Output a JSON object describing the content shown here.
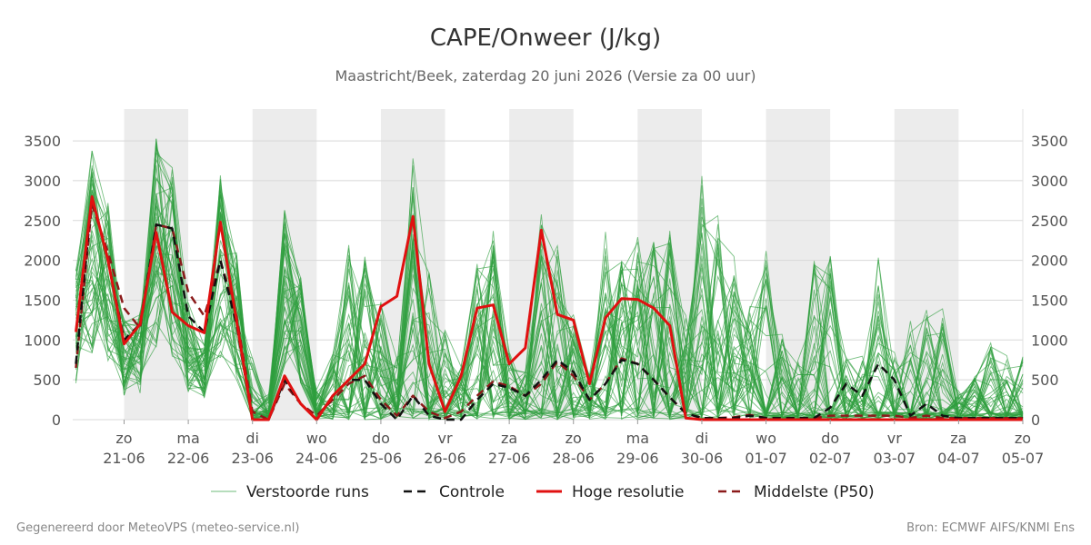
{
  "chart_data": {
    "type": "line",
    "title": "CAPE/Onweer (J/kg)",
    "subtitle": "Maastricht/Beek, zaterdag 20 juni 2026 (Versie za 00 uur)",
    "ylim": [
      0,
      3900
    ],
    "yticks": [
      0,
      500,
      1000,
      1500,
      2000,
      2500,
      3000,
      3500
    ],
    "xlim": [
      -0.8,
      14
    ],
    "x_ticks": [
      {
        "day": "zo",
        "date": "21-06"
      },
      {
        "day": "ma",
        "date": "22-06"
      },
      {
        "day": "di",
        "date": "23-06"
      },
      {
        "day": "wo",
        "date": "24-06"
      },
      {
        "day": "do",
        "date": "25-06"
      },
      {
        "day": "vr",
        "date": "26-06"
      },
      {
        "day": "za",
        "date": "27-06"
      },
      {
        "day": "zo",
        "date": "28-06"
      },
      {
        "day": "ma",
        "date": "29-06"
      },
      {
        "day": "di",
        "date": "30-06"
      },
      {
        "day": "wo",
        "date": "01-07"
      },
      {
        "day": "do",
        "date": "02-07"
      },
      {
        "day": "vr",
        "date": "03-07"
      },
      {
        "day": "za",
        "date": "04-07"
      },
      {
        "day": "zo",
        "date": "05-07"
      }
    ],
    "weekend_bands": [
      [
        0,
        1
      ],
      [
        2,
        3
      ],
      [
        4,
        5
      ],
      [
        6,
        7
      ],
      [
        8,
        9
      ],
      [
        10,
        11
      ],
      [
        12,
        13
      ]
    ],
    "series": [
      {
        "name": "Controle",
        "color": "#111111",
        "style": "dashed",
        "x": [
          -0.75,
          -0.5,
          -0.25,
          0,
          0.25,
          0.5,
          0.75,
          1,
          1.25,
          1.5,
          1.75,
          2,
          2.25,
          2.5,
          2.75,
          3,
          3.25,
          3.5,
          3.75,
          4,
          4.25,
          4.5,
          4.75,
          5,
          5.25,
          5.5,
          5.75,
          6,
          6.25,
          6.5,
          6.75,
          7,
          7.25,
          7.5,
          7.75,
          8,
          8.25,
          8.5,
          8.75,
          9,
          9.25,
          9.5,
          9.75,
          10,
          10.25,
          10.5,
          10.75,
          11,
          11.25,
          11.5,
          11.75,
          12,
          12.25,
          12.5,
          12.75,
          13,
          13.25,
          13.5,
          13.75,
          14
        ],
        "values": [
          700,
          2800,
          2000,
          1000,
          1200,
          2450,
          2400,
          1300,
          1100,
          2000,
          1200,
          0,
          0,
          500,
          200,
          0,
          300,
          500,
          500,
          200,
          0,
          300,
          50,
          0,
          0,
          250,
          450,
          400,
          300,
          500,
          750,
          600,
          250,
          450,
          750,
          700,
          500,
          280,
          80,
          20,
          20,
          20,
          50,
          20,
          20,
          20,
          20,
          150,
          450,
          300,
          700,
          500,
          50,
          200,
          50,
          20,
          20,
          20,
          20,
          20
        ]
      },
      {
        "name": "Hoge resolutie",
        "color": "#e01010",
        "style": "solid",
        "x": [
          -0.75,
          -0.5,
          -0.25,
          0,
          0.25,
          0.5,
          0.75,
          1,
          1.25,
          1.5,
          1.75,
          2,
          2.25,
          2.5,
          2.75,
          3,
          3.25,
          3.5,
          3.75,
          4,
          4.25,
          4.5,
          4.75,
          5,
          5.25,
          5.5,
          5.75,
          6,
          6.25,
          6.5,
          6.75,
          7,
          7.25,
          7.5,
          7.75,
          8,
          8.25,
          8.5,
          8.75,
          9,
          9.25,
          9.5,
          9.75,
          10,
          10.25,
          10.5,
          10.75,
          11,
          11.25,
          11.5,
          11.75,
          12,
          12.25,
          12.5,
          12.75,
          13,
          13.25,
          13.5,
          13.75,
          14
        ],
        "values": [
          1100,
          2800,
          2000,
          950,
          1200,
          2350,
          1350,
          1180,
          1090,
          2480,
          1250,
          0,
          0,
          550,
          200,
          0,
          300,
          500,
          700,
          1420,
          1550,
          2550,
          700,
          100,
          550,
          1400,
          1440,
          700,
          900,
          2380,
          1320,
          1250,
          450,
          1280,
          1520,
          1510,
          1400,
          1180,
          20,
          0,
          0,
          0,
          0,
          0,
          0,
          0,
          0,
          0,
          0,
          0,
          0,
          0,
          0,
          0,
          0,
          0,
          0,
          0,
          0,
          0
        ]
      },
      {
        "name": "Middelste (P50)",
        "color": "#8b1a1a",
        "style": "dashed",
        "x": [
          -0.75,
          -0.5,
          -0.25,
          0,
          0.25,
          0.5,
          0.75,
          1,
          1.25,
          1.5,
          1.75,
          2,
          2.25,
          2.5,
          2.75,
          3,
          3.25,
          3.5,
          3.75,
          4,
          4.25,
          4.5,
          4.75,
          5,
          5.25,
          5.5,
          5.75,
          6,
          6.25,
          6.5,
          6.75,
          7,
          7.25,
          7.5,
          7.75,
          8,
          8.25,
          8.5,
          8.75,
          9,
          9.25,
          9.5,
          9.75,
          10,
          10.25,
          10.5,
          10.75,
          11,
          11.25,
          11.5,
          11.75,
          12,
          12.25,
          12.5,
          12.75,
          13,
          13.25,
          13.5,
          13.75,
          14
        ],
        "values": [
          650,
          2700,
          2100,
          1400,
          1150,
          2450,
          2400,
          1600,
          1300,
          2000,
          1300,
          100,
          0,
          450,
          200,
          50,
          250,
          450,
          550,
          250,
          50,
          300,
          100,
          20,
          100,
          300,
          480,
          420,
          300,
          450,
          730,
          550,
          250,
          450,
          770,
          700,
          500,
          280,
          80,
          20,
          20,
          30,
          60,
          20,
          20,
          20,
          20,
          50,
          50,
          50,
          50,
          50,
          20,
          50,
          20,
          20,
          20,
          20,
          20,
          20
        ]
      }
    ],
    "ensemble": {
      "name": "Verstoorde runs",
      "color": "#2e9e3e",
      "members": 50,
      "x_start": -0.75,
      "x_step": 0.25,
      "sample_profile": [
        1800,
        3300,
        2600,
        1200,
        1300,
        3400,
        3100,
        1400,
        900,
        3100,
        2000,
        800,
        300,
        2600,
        1700,
        400,
        900,
        2400,
        2200,
        1600,
        900,
        3640,
        2000,
        1200,
        700,
        2200,
        2500,
        900,
        700,
        2850,
        2400,
        1400,
        600,
        2500,
        2200,
        2500,
        2400,
        2500,
        1400,
        3220,
        2700,
        2200,
        1500,
        2400,
        1200,
        900,
        2300,
        2450,
        900,
        950,
        2330,
        1000,
        1400,
        1700,
        1600,
        400,
        600,
        1100,
        900,
        900
      ],
      "max": 3900
    },
    "legend": [
      "Verstoorde runs",
      "Controle",
      "Hoge resolutie",
      "Middelste (P50)"
    ],
    "legend_position": "bottom-center",
    "grid": true,
    "footer_left": "Gegenereerd door MeteoVPS (meteo-service.nl)",
    "footer_right": "Bron: ECMWF AIFS/KNMI Ens"
  }
}
